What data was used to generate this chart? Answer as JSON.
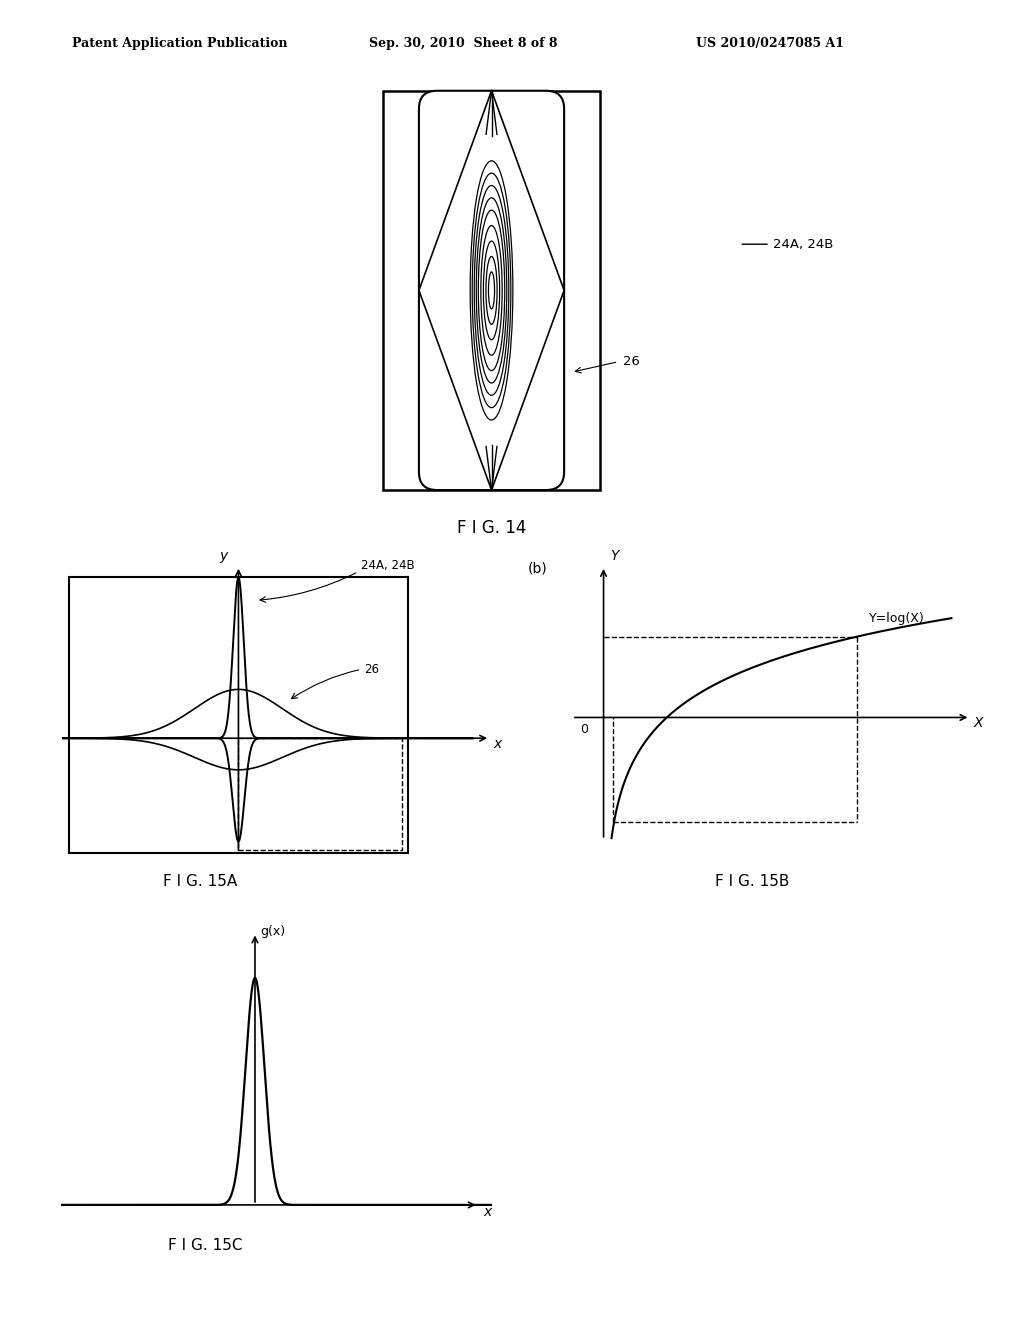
{
  "bg_color": "#ffffff",
  "text_color": "#000000",
  "header_left": "Patent Application Publication",
  "header_mid": "Sep. 30, 2010  Sheet 8 of 8",
  "header_right": "US 2010/0247085 A1",
  "fig14_label": "F I G. 14",
  "fig15a_label": "F I G. 15A",
  "fig15b_label": "F I G. 15B",
  "fig15c_label": "F I G. 15C",
  "label_24A_24B_top": "24A, 24B",
  "label_26_top": "26",
  "label_24A_24B_15a": "24A, 24B",
  "label_26_15a": "26",
  "label_b": "(b)",
  "label_Ylog": "Y=log(X)"
}
